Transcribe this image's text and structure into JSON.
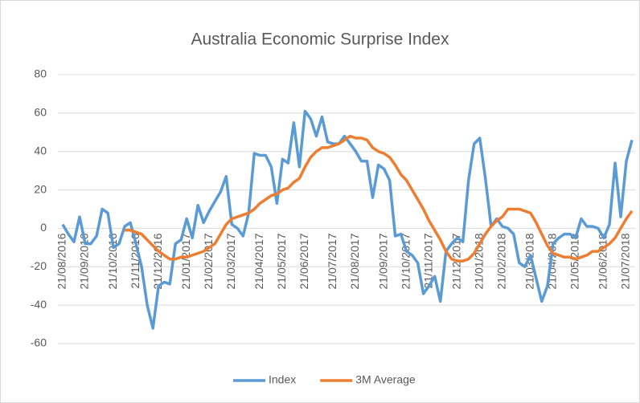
{
  "chart_data": {
    "type": "line",
    "title": "Australia Economic Surprise Index",
    "categories": [
      "21/08/2016",
      null,
      null,
      null,
      "21/09/2016",
      null,
      null,
      null,
      null,
      "21/10/2016",
      null,
      null,
      null,
      "21/11/2016",
      null,
      null,
      null,
      "21/12/2016",
      null,
      null,
      null,
      null,
      "21/01/2017",
      null,
      null,
      null,
      "21/02/2017",
      null,
      null,
      null,
      "21/03/2017",
      null,
      null,
      null,
      null,
      "21/04/2017",
      null,
      null,
      null,
      "21/05/2017",
      null,
      null,
      null,
      "21/06/2017",
      null,
      null,
      null,
      null,
      "21/07/2017",
      null,
      null,
      null,
      "21/08/2017",
      null,
      null,
      null,
      null,
      "21/09/2017",
      null,
      null,
      null,
      "21/10/2017",
      null,
      null,
      null,
      "21/11/2017",
      null,
      null,
      null,
      null,
      "21/12/2017",
      null,
      null,
      null,
      "21/01/2018",
      null,
      null,
      null,
      "21/02/2018",
      null,
      null,
      null,
      null,
      "21/03/2018",
      null,
      null,
      null,
      "21/04/2018",
      null,
      null,
      null,
      "21/05/2018",
      null,
      null,
      null,
      null,
      "21/06/2018",
      null,
      null,
      null,
      "21/07/2018",
      null
    ],
    "series": [
      {
        "name": "Index",
        "color": "#5b9bd5",
        "values": [
          2,
          -3,
          -7,
          6,
          -8,
          -8,
          -4,
          10,
          8,
          -10,
          -8,
          1,
          3,
          -8,
          -20,
          -40,
          -52,
          -30,
          -28,
          -29,
          -8,
          -6,
          5,
          -5,
          12,
          3,
          9,
          14,
          19,
          27,
          2,
          0,
          -4,
          8,
          39,
          38,
          38,
          32,
          13,
          36,
          34,
          55,
          32,
          61,
          57,
          48,
          58,
          45,
          44,
          44,
          48,
          44,
          40,
          35,
          35,
          16,
          33,
          31,
          25,
          -4,
          -3,
          -12,
          -14,
          -18,
          -34,
          -30,
          -25,
          -38,
          -12,
          -8,
          -5,
          -7,
          25,
          44,
          47,
          26,
          1,
          5,
          1,
          0,
          -3,
          -18,
          -20,
          -14,
          -26,
          -38,
          -30,
          -8,
          -5,
          -3,
          -3,
          -5,
          5,
          1,
          1,
          0,
          -5,
          2,
          34,
          6,
          35,
          46
        ]
      },
      {
        "name": "3M Average",
        "color": "#ed7d31",
        "values": [
          null,
          null,
          null,
          null,
          null,
          null,
          null,
          null,
          null,
          null,
          null,
          -1,
          -1,
          -2,
          -3,
          -6,
          -9,
          -12,
          -14,
          -16,
          -16,
          -15,
          -15,
          -14,
          -13,
          -12,
          -10,
          -8,
          -3,
          2,
          5,
          6,
          7,
          8,
          10,
          13,
          15,
          17,
          18,
          20,
          21,
          24,
          26,
          32,
          37,
          40,
          42,
          42,
          43,
          44,
          46,
          48,
          47,
          47,
          46,
          42,
          40,
          39,
          37,
          33,
          28,
          25,
          20,
          15,
          10,
          4,
          -1,
          -6,
          -12,
          -16,
          -17,
          -17,
          -16,
          -13,
          -8,
          -3,
          1,
          4,
          6,
          10,
          10,
          10,
          9,
          8,
          3,
          -3,
          -9,
          -13,
          -14,
          -15,
          -15,
          -16,
          -15,
          -14,
          -12,
          -12,
          -10,
          -8,
          -5,
          0,
          5,
          9
        ]
      }
    ],
    "ylim": [
      -60,
      80
    ],
    "yticks": [
      -60,
      -40,
      -20,
      0,
      20,
      40,
      60,
      80
    ],
    "grid": true,
    "legend": "bottom"
  }
}
